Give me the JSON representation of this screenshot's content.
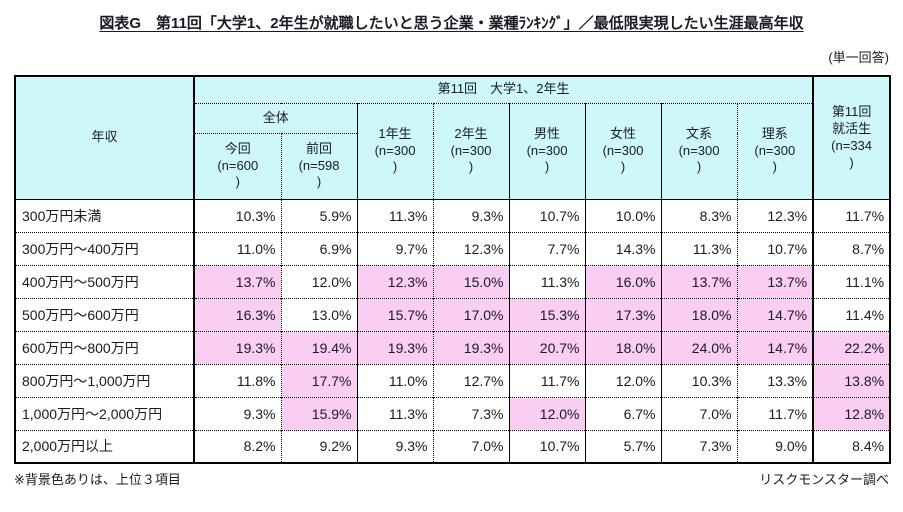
{
  "title": "図表G　第11回「大学1、2年生が就職したいと思う企業・業種ﾗﾝｷﾝｸﾞ」／最低限実現したい生涯最高年収",
  "answer_note": "(単一回答)",
  "footer": {
    "highlight_note": "※背景色ありは、上位３項目",
    "source": "リスクモンスター調べ"
  },
  "colors": {
    "header_bg": "#cef7fa",
    "highlight_bg": "#facdf3",
    "border": "#000000",
    "text": "#1a1a24"
  },
  "chart_data": {
    "type": "table",
    "corner_header": "年収",
    "group_header": "第11回　大学1、2年生",
    "subgroup_header": "全体",
    "col_headers": [
      "今回\n(n=600\n)",
      "前回\n(n=598\n)",
      "1年生\n(n=300\n)",
      "2年生\n(n=300\n)",
      "男性\n(n=300\n)",
      "女性\n(n=300\n)",
      "文系\n(n=300\n)",
      "理系\n(n=300\n)",
      "第11回\n就活生\n(n=334\n)"
    ],
    "rows": [
      {
        "label": "300万円未満",
        "values": [
          "10.3%",
          "5.9%",
          "11.3%",
          "9.3%",
          "10.7%",
          "10.0%",
          "8.3%",
          "12.3%",
          "11.7%"
        ],
        "highlight": [
          0,
          0,
          0,
          0,
          0,
          0,
          0,
          0,
          0
        ]
      },
      {
        "label": "300万円～400万円",
        "values": [
          "11.0%",
          "6.9%",
          "9.7%",
          "12.3%",
          "7.7%",
          "14.3%",
          "11.3%",
          "10.7%",
          "8.7%"
        ],
        "highlight": [
          0,
          0,
          0,
          0,
          0,
          0,
          0,
          0,
          0
        ]
      },
      {
        "label": "400万円～500万円",
        "values": [
          "13.7%",
          "12.0%",
          "12.3%",
          "15.0%",
          "11.3%",
          "16.0%",
          "13.7%",
          "13.7%",
          "11.1%"
        ],
        "highlight": [
          1,
          0,
          1,
          1,
          0,
          1,
          1,
          1,
          0
        ]
      },
      {
        "label": "500万円～600万円",
        "values": [
          "16.3%",
          "13.0%",
          "15.7%",
          "17.0%",
          "15.3%",
          "17.3%",
          "18.0%",
          "14.7%",
          "11.4%"
        ],
        "highlight": [
          1,
          0,
          1,
          1,
          1,
          1,
          1,
          1,
          0
        ]
      },
      {
        "label": "600万円～800万円",
        "values": [
          "19.3%",
          "19.4%",
          "19.3%",
          "19.3%",
          "20.7%",
          "18.0%",
          "24.0%",
          "14.7%",
          "22.2%"
        ],
        "highlight": [
          1,
          1,
          1,
          1,
          1,
          1,
          1,
          1,
          1
        ]
      },
      {
        "label": "800万円～1,000万円",
        "values": [
          "11.8%",
          "17.7%",
          "11.0%",
          "12.7%",
          "11.7%",
          "12.0%",
          "10.3%",
          "13.3%",
          "13.8%"
        ],
        "highlight": [
          0,
          1,
          0,
          0,
          0,
          0,
          0,
          0,
          1
        ]
      },
      {
        "label": "1,000万円～2,000万円",
        "values": [
          "9.3%",
          "15.9%",
          "11.3%",
          "7.3%",
          "12.0%",
          "6.7%",
          "7.0%",
          "11.7%",
          "12.8%"
        ],
        "highlight": [
          0,
          1,
          0,
          0,
          1,
          0,
          0,
          0,
          1
        ]
      },
      {
        "label": "2,000万円以上",
        "values": [
          "8.2%",
          "9.2%",
          "9.3%",
          "7.0%",
          "10.7%",
          "5.7%",
          "7.3%",
          "9.0%",
          "8.4%"
        ],
        "highlight": [
          0,
          0,
          0,
          0,
          0,
          0,
          0,
          0,
          0
        ]
      }
    ]
  }
}
